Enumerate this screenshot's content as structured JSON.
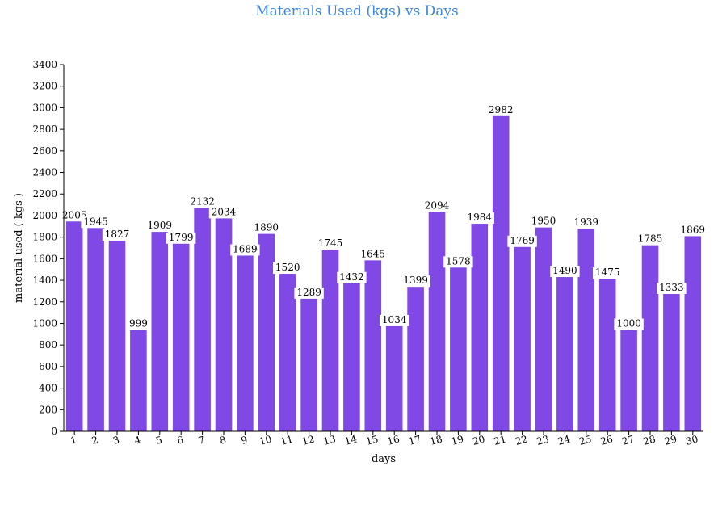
{
  "chart_data": {
    "type": "bar",
    "title": "Materials Used (kgs) vs Days",
    "xlabel": "days",
    "ylabel": "material used ( kgs )",
    "categories": [
      "1",
      "2",
      "3",
      "4",
      "5",
      "6",
      "7",
      "8",
      "9",
      "10",
      "11",
      "12",
      "13",
      "14",
      "15",
      "16",
      "17",
      "18",
      "19",
      "20",
      "21",
      "22",
      "23",
      "24",
      "25",
      "26",
      "27",
      "28",
      "29",
      "30"
    ],
    "values": [
      2005,
      1945,
      1827,
      999,
      1909,
      1799,
      2132,
      2034,
      1689,
      1890,
      1520,
      1289,
      1745,
      1432,
      1645,
      1034,
      1399,
      2094,
      1578,
      1984,
      2982,
      1769,
      1950,
      1490,
      1939,
      1475,
      1000,
      1785,
      1333,
      1869
    ],
    "ylim": [
      0,
      3400
    ],
    "yticks": [
      0,
      200,
      400,
      600,
      800,
      1000,
      1200,
      1400,
      1600,
      1800,
      2000,
      2200,
      2400,
      2600,
      2800,
      3000,
      3200,
      3400
    ],
    "bar_color": "#8048e5",
    "title_color": "#3a86e0",
    "grid": false
  }
}
